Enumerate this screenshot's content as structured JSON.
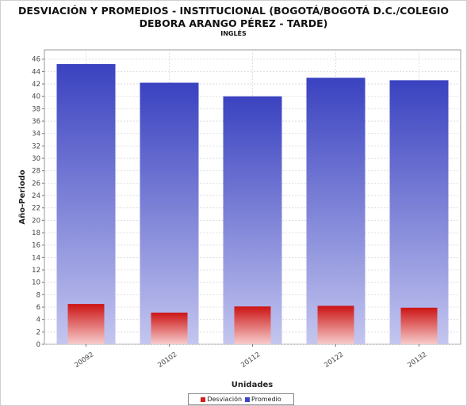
{
  "chart_data": {
    "type": "bar",
    "title": "DESVIACIÓN Y PROMEDIOS - INSTITUCIONAL (BOGOTÁ/BOGOTÁ D.C./COLEGIO",
    "title_line2": "DEBORA ARANGO PÉREZ - TARDE)",
    "subtitle": "INGLÉS",
    "xlabel": "Unidades",
    "ylabel": "Año-Periodo",
    "categories": [
      "20092",
      "20102",
      "20112",
      "20122",
      "20132"
    ],
    "series": [
      {
        "name": "Desviación",
        "values": [
          6.5,
          5.1,
          6.1,
          6.2,
          5.9
        ],
        "color": "#d42020"
      },
      {
        "name": "Promedio",
        "values": [
          45.2,
          42.2,
          40.0,
          43.0,
          42.6
        ],
        "color": "#3d46c2"
      }
    ],
    "yticks": [
      0,
      2,
      4,
      6,
      8,
      10,
      12,
      14,
      16,
      18,
      20,
      22,
      24,
      26,
      28,
      30,
      32,
      34,
      36,
      38,
      40,
      42,
      44,
      46
    ],
    "ylim": [
      0,
      47.5
    ],
    "grid": true,
    "legend_position": "bottom"
  }
}
